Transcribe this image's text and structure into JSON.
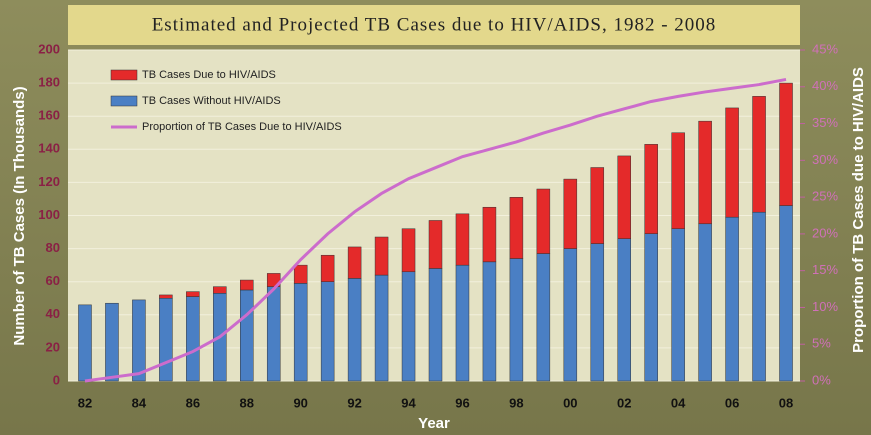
{
  "chart_data": {
    "type": "bar",
    "title": "Estimated and Projected TB Cases due to HIV/AIDS, 1982 - 2008",
    "x_label": "Year",
    "y_label": "Number of TB Cases (In Thousands)",
    "y2_label": "Proportion of TB Cases due to HIV/AIDS",
    "categories": [
      "82",
      null,
      "84",
      null,
      "86",
      null,
      "88",
      null,
      "90",
      null,
      "92",
      null,
      "94",
      null,
      "96",
      null,
      "98",
      null,
      "00",
      null,
      "02",
      null,
      "04",
      null,
      "06",
      null,
      "08"
    ],
    "stacked": true,
    "series": [
      {
        "name": "TB Cases Due to HIV/AIDS",
        "type": "bar",
        "color": "#e42a2a",
        "values": [
          0,
          0,
          0,
          2,
          3,
          4,
          6,
          8,
          11,
          16,
          19,
          23,
          26,
          29,
          31,
          33,
          37,
          39,
          42,
          46,
          50,
          54,
          58,
          62,
          66,
          70,
          74
        ]
      },
      {
        "name": "TB Cases Without HIV/AIDS",
        "type": "bar",
        "color": "#4a7fc4",
        "values": [
          46,
          47,
          49,
          50,
          51,
          53,
          55,
          57,
          59,
          60,
          62,
          64,
          66,
          68,
          70,
          72,
          74,
          77,
          80,
          83,
          86,
          89,
          92,
          95,
          99,
          102,
          106
        ]
      },
      {
        "name": "Proportion of TB Cases Due to HIV/AIDS",
        "type": "line",
        "axis": "y2",
        "color": "#cc6ccc",
        "values": [
          0,
          0.5,
          1,
          2.5,
          4,
          6,
          9,
          12.5,
          16.5,
          20,
          23,
          25.5,
          27.5,
          29,
          30.5,
          31.5,
          32.5,
          33.7,
          34.8,
          36,
          37,
          38,
          38.7,
          39.3,
          39.8,
          40.3,
          41
        ]
      }
    ],
    "ylim": [
      0,
      200
    ],
    "yticks": [
      0,
      20,
      40,
      60,
      80,
      100,
      120,
      140,
      160,
      180,
      200
    ],
    "y2lim": [
      0,
      45
    ],
    "y2ticks": [
      {
        "value": 0,
        "label": "0%"
      },
      {
        "value": 5,
        "label": "5%"
      },
      {
        "value": 10,
        "label": "10%"
      },
      {
        "value": 15,
        "label": "15%"
      },
      {
        "value": 20,
        "label": "20%"
      },
      {
        "value": 25,
        "label": "25%"
      },
      {
        "value": 30,
        "label": "30%"
      },
      {
        "value": 35,
        "label": "35%"
      },
      {
        "value": 40,
        "label": "40%"
      },
      {
        "value": 45,
        "label": "45%"
      }
    ],
    "grid": true,
    "legend": "upper left"
  }
}
